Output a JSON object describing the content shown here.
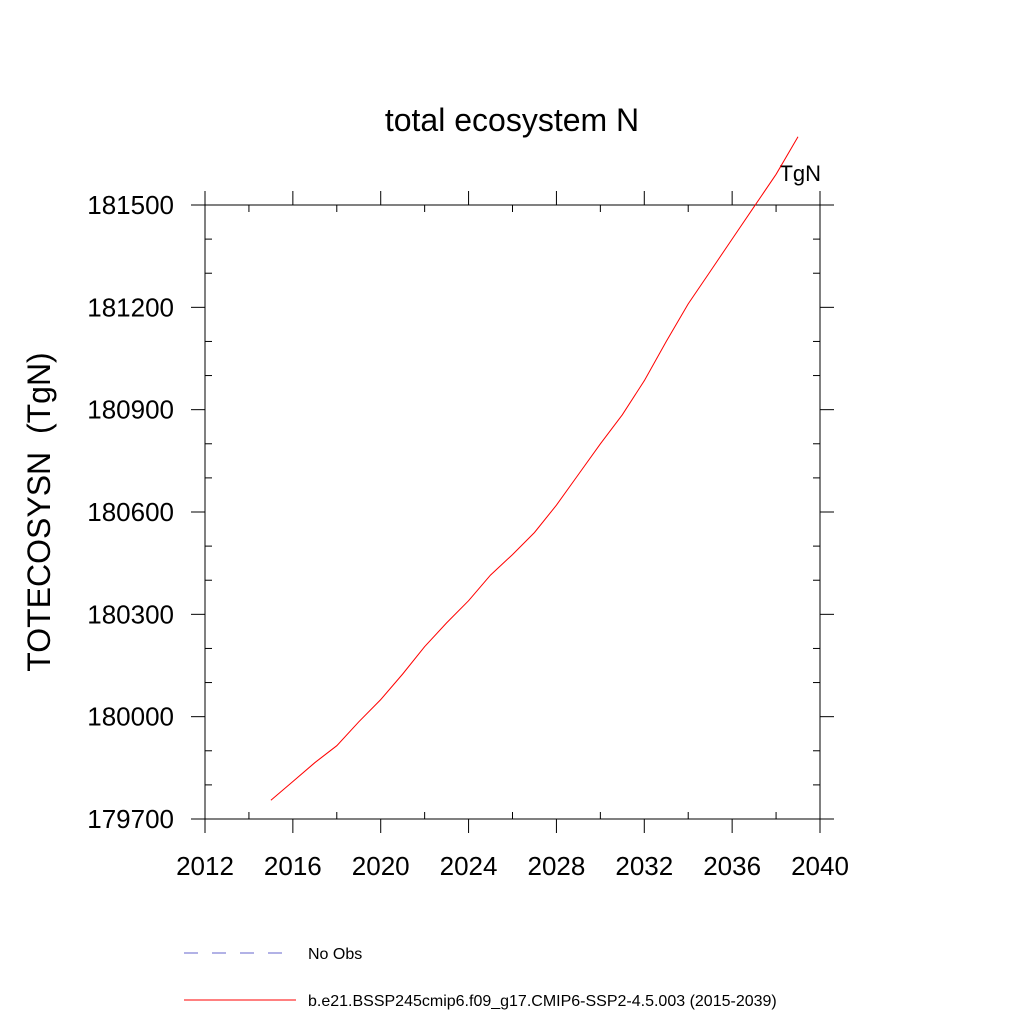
{
  "chart_data": {
    "type": "line",
    "title": "total ecosystem N",
    "units_label": "TgN",
    "xlabel": "",
    "ylabel": "TOTECOSYSN  (TgN)",
    "xlim": [
      2012,
      2040
    ],
    "ylim": [
      179700,
      181500
    ],
    "x_ticks": [
      2012,
      2016,
      2020,
      2024,
      2028,
      2032,
      2036,
      2040
    ],
    "x_minor_ticks": [
      2014,
      2018,
      2022,
      2026,
      2030,
      2034,
      2038
    ],
    "y_ticks": [
      179700,
      180000,
      180300,
      180600,
      180900,
      181200,
      181500
    ],
    "y_minor_ticks": [
      179800,
      179900,
      180100,
      180200,
      180400,
      180500,
      180700,
      180800,
      181000,
      181100,
      181300,
      181400
    ],
    "grid": false,
    "series": [
      {
        "name": "b.e21.BSSP245cmip6.f09_g17.CMIP6-SSP2-4.5.003 (2015-2039)",
        "color": "#ff0000",
        "dash": "solid",
        "x": [
          2015,
          2016,
          2017,
          2018,
          2019,
          2020,
          2021,
          2022,
          2023,
          2024,
          2025,
          2026,
          2027,
          2028,
          2029,
          2030,
          2031,
          2032,
          2033,
          2034,
          2035,
          2036,
          2037,
          2038,
          2039
        ],
        "y": [
          179755,
          179810,
          179865,
          179915,
          179985,
          180050,
          180125,
          180205,
          180275,
          180340,
          180415,
          180475,
          180540,
          180620,
          180710,
          180800,
          180885,
          180985,
          181100,
          181210,
          181305,
          181400,
          181495,
          181590,
          181700
        ]
      }
    ],
    "legend": [
      {
        "label": "No Obs",
        "color": "#6666cc",
        "dash": "dashed"
      },
      {
        "label": "b.e21.BSSP245cmip6.f09_g17.CMIP6-SSP2-4.5.003 (2015-2039)",
        "color": "#ff0000",
        "dash": "solid"
      }
    ],
    "legend_position": "bottom"
  }
}
